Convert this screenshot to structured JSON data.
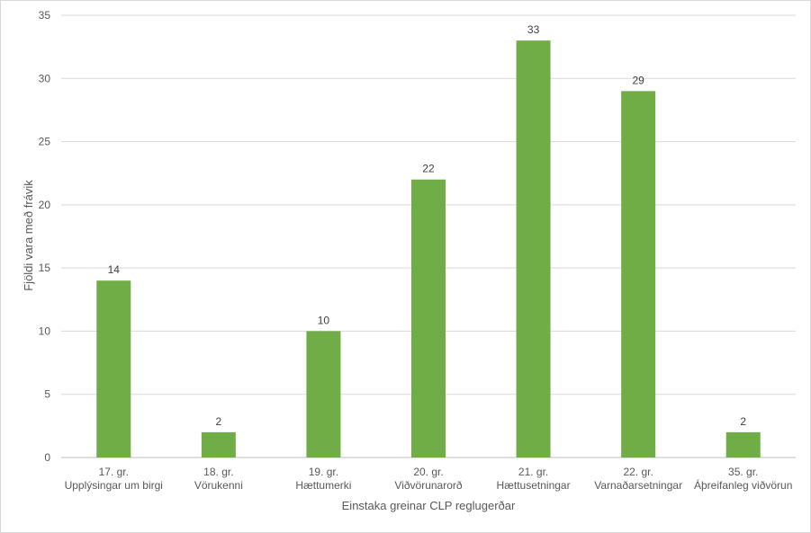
{
  "chart_data": {
    "type": "bar",
    "categories": [
      [
        "17. gr.",
        "Upplýsingar um birgi"
      ],
      [
        "18. gr.",
        "Vörukenni"
      ],
      [
        "19. gr.",
        "Hættumerki"
      ],
      [
        "20. gr.",
        "Viðvörunarorð"
      ],
      [
        "21. gr.",
        "Hættusetningar"
      ],
      [
        "22. gr.",
        "Varnaðarsetningar"
      ],
      [
        "35. gr.",
        "Áþreifanleg viðvörun"
      ]
    ],
    "values": [
      14,
      2,
      10,
      22,
      33,
      29,
      2
    ],
    "xlabel": "Einstaka greinar CLP reglugerðar",
    "ylabel": "Fjöldi vara með frávik",
    "ylim": [
      0,
      35
    ],
    "yticks": [
      0,
      5,
      10,
      15,
      20,
      25,
      30,
      35
    ],
    "grid": true,
    "data_labels": true,
    "bar_color": "#70ad47",
    "grid_color": "#d9d9d9"
  }
}
